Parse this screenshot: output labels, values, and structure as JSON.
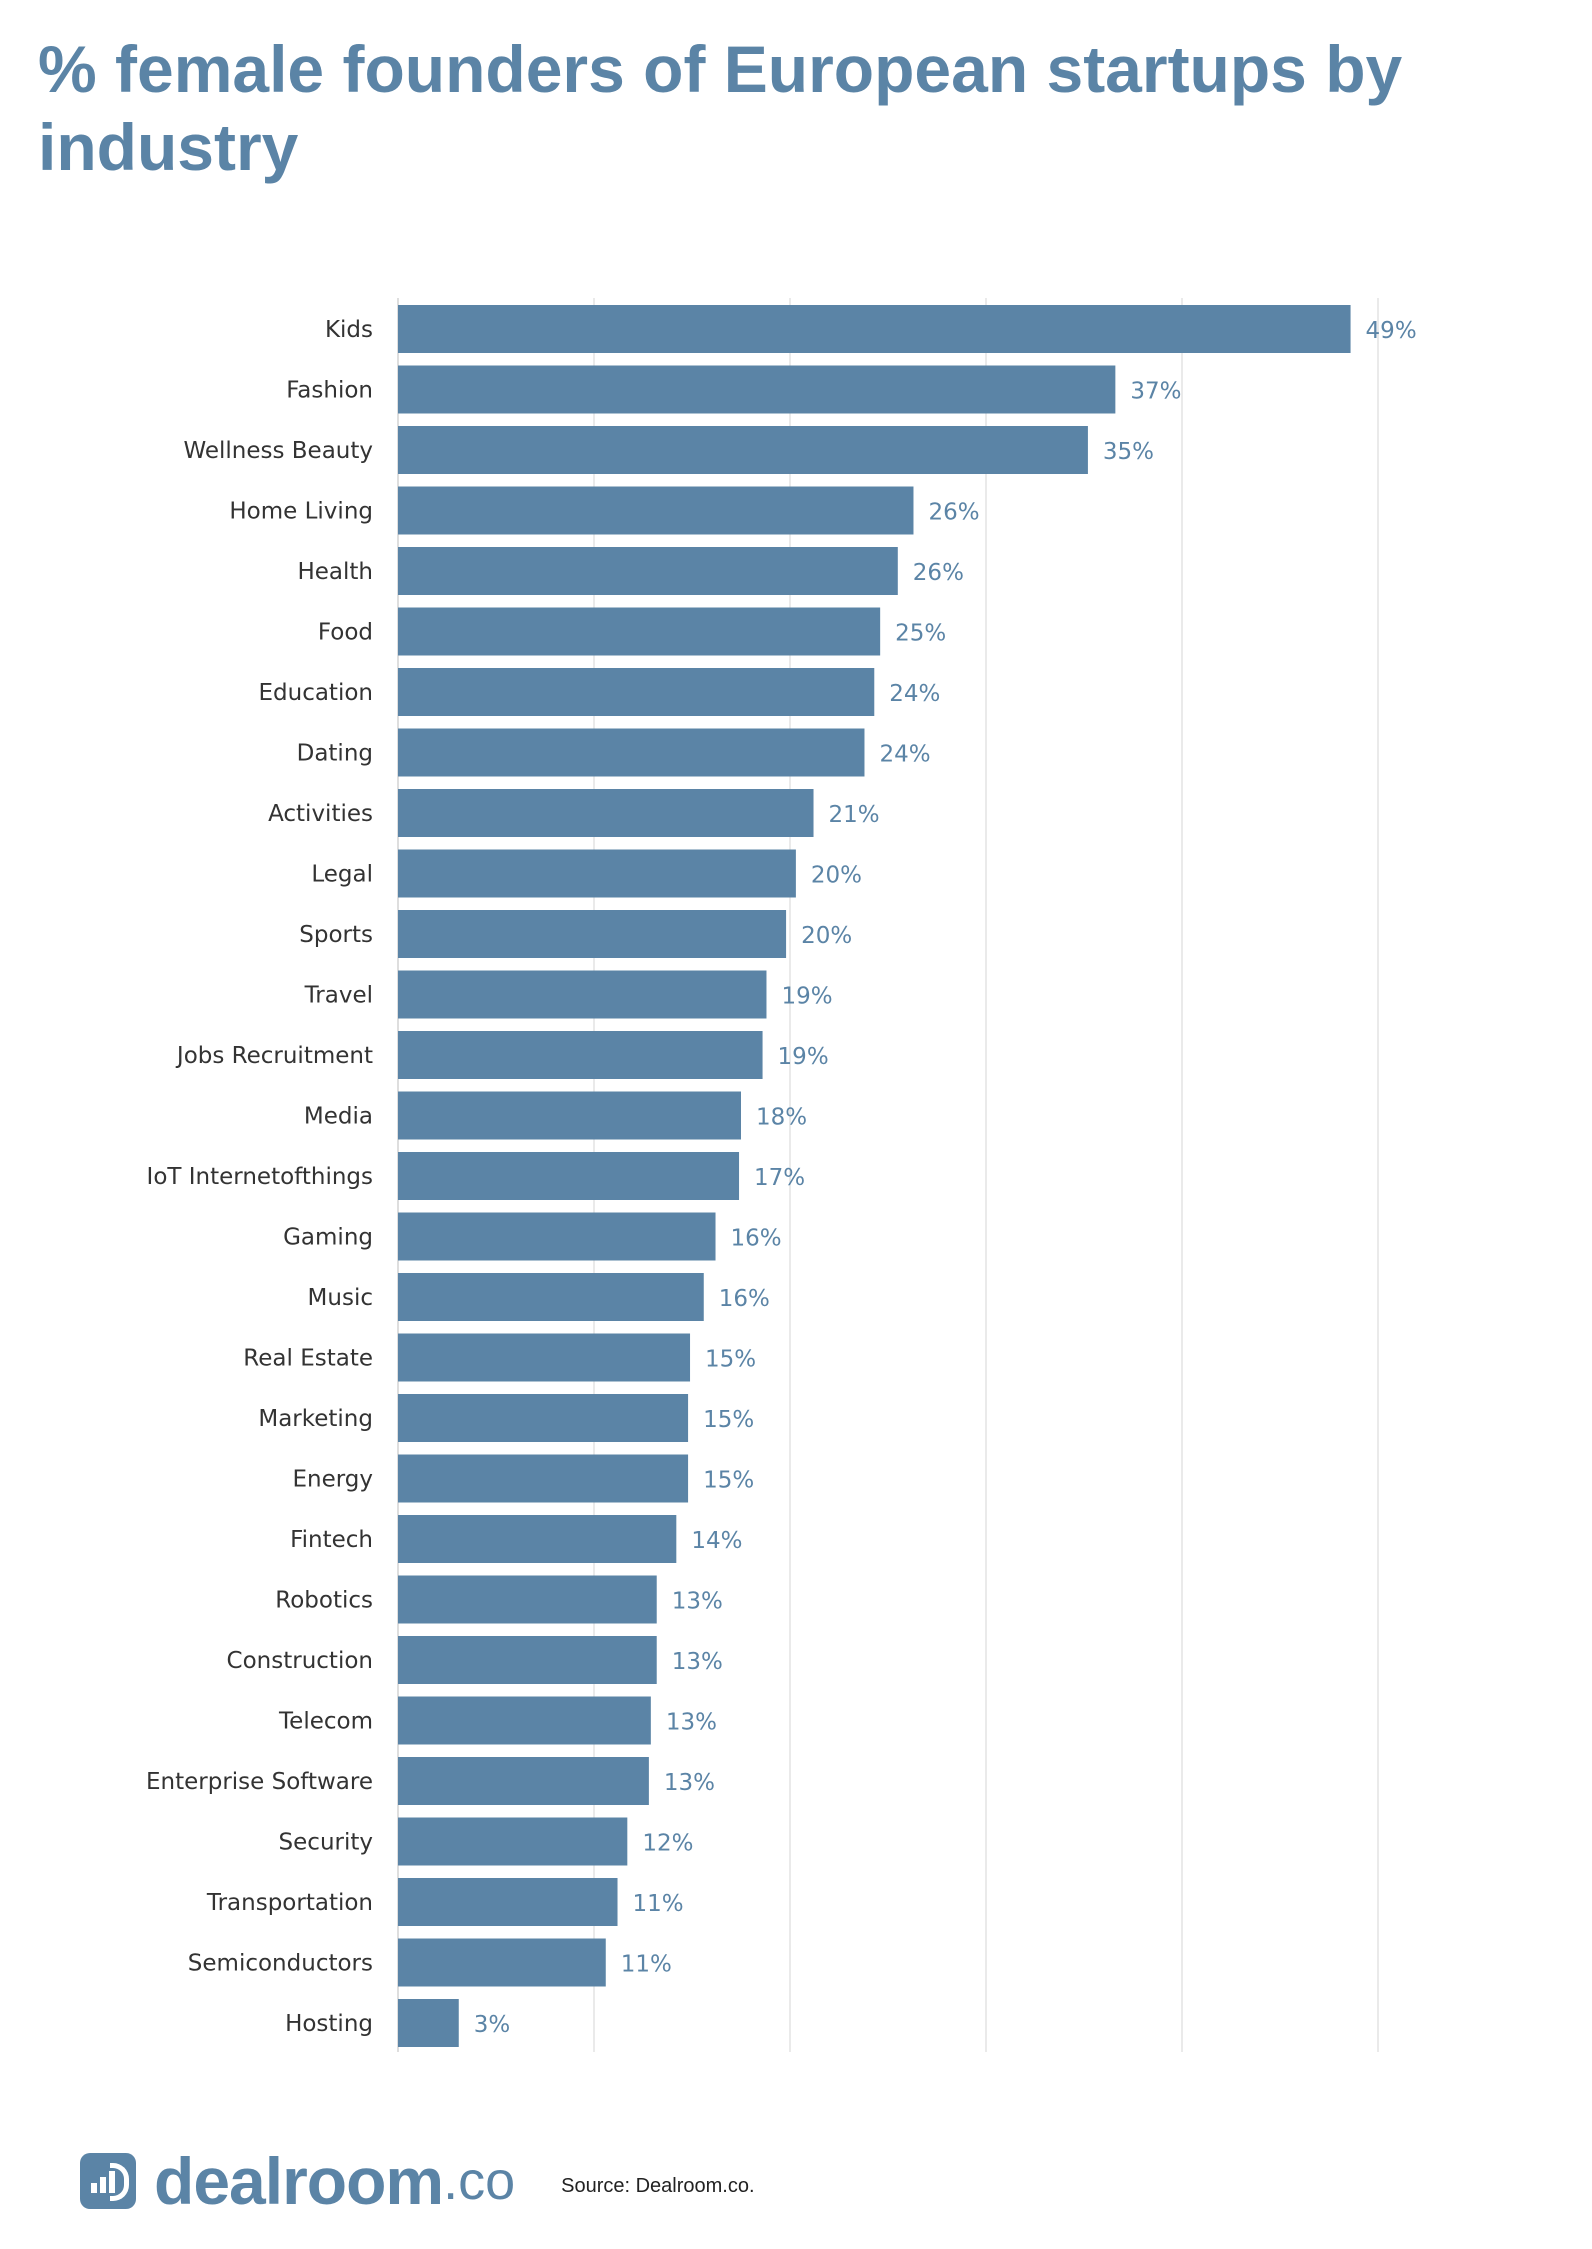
{
  "header": {
    "title": "% female founders of European startups by industry"
  },
  "chart_data": {
    "type": "bar",
    "orientation": "horizontal",
    "title": "% female founders of European startups by industry",
    "xlabel": "",
    "ylabel": "",
    "xlim": [
      0,
      50
    ],
    "grid": true,
    "legend": "none",
    "value_suffix": "%",
    "bar_color": "#5b84a6",
    "label_color": "#5b84a6",
    "grid_color": "#e3e3e3",
    "categories": [
      "Kids",
      "Fashion",
      "Wellness Beauty",
      "Home Living",
      "Health",
      "Food",
      "Education",
      "Dating",
      "Activities",
      "Legal",
      "Sports",
      "Travel",
      "Jobs Recruitment",
      "Media",
      "IoT Internetofthings",
      "Gaming",
      "Music",
      "Real Estate",
      "Marketing",
      "Energy",
      "Fintech",
      "Robotics",
      "Construction",
      "Telecom",
      "Enterprise Software",
      "Security",
      "Transportation",
      "Semiconductors",
      "Hosting"
    ],
    "values": [
      48.6,
      36.6,
      35.2,
      26.3,
      25.5,
      24.6,
      24.3,
      23.8,
      21.2,
      20.3,
      19.8,
      18.8,
      18.6,
      17.5,
      17.4,
      16.2,
      15.6,
      14.9,
      14.8,
      14.8,
      14.2,
      13.2,
      13.2,
      12.9,
      12.8,
      11.7,
      11.2,
      10.6,
      3.1
    ],
    "data_labels": [
      "49%",
      "37%",
      "35%",
      "26%",
      "26%",
      "25%",
      "24%",
      "24%",
      "21%",
      "20%",
      "20%",
      "19%",
      "19%",
      "18%",
      "17%",
      "16%",
      "16%",
      "15%",
      "15%",
      "15%",
      "14%",
      "13%",
      "13%",
      "13%",
      "13%",
      "12%",
      "11%",
      "11%",
      "3%"
    ]
  },
  "footer": {
    "logo_name": "dealroom",
    "logo_suffix": ".co",
    "logo_icon": "dealroom-logo-icon",
    "source": "Source: Dealroom.co."
  }
}
